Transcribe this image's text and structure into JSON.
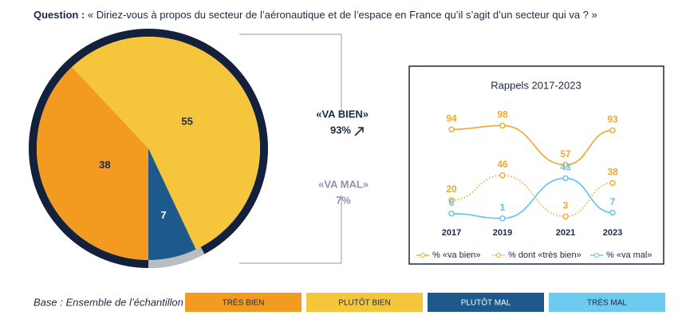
{
  "question": {
    "label": "Question :",
    "text": "« Diriez-vous à propos du secteur de l’aéronautique et de l’espace en France qu’il s’agit d’un secteur qui va ? »"
  },
  "summary": [
    {
      "label": "«VA BIEN»",
      "value": "93%"
    },
    {
      "label": "«VA MAL»",
      "value": "7%"
    }
  ],
  "base": "Base : Ensemble de l’échantillon",
  "chart_data": [
    {
      "type": "pie",
      "categories": [
        "TRÈS BIEN",
        "PLUTÔT BIEN",
        "PLUTÔT MAL",
        "TRÈS MAL"
      ],
      "values": [
        38,
        55,
        7,
        null
      ],
      "colors": [
        "#f39a21",
        "#f5c53b",
        "#1d5a8b",
        "#6ccbef"
      ]
    },
    {
      "type": "line",
      "title": "Rappels 2017-2023",
      "categories": [
        "2017",
        "2019",
        "2021",
        "2023"
      ],
      "series": [
        {
          "name": "% «va bien»",
          "color": "#f0a830",
          "style": "solid",
          "values": [
            94,
            98,
            57,
            93
          ]
        },
        {
          "name": "% dont «très bien»",
          "color": "#f0a830",
          "style": "dotted",
          "values": [
            20,
            46,
            3,
            38
          ]
        },
        {
          "name": "% «va mal»",
          "color": "#5ec3ec",
          "style": "solid",
          "values": [
            6,
            1,
            43,
            7
          ]
        }
      ]
    }
  ]
}
